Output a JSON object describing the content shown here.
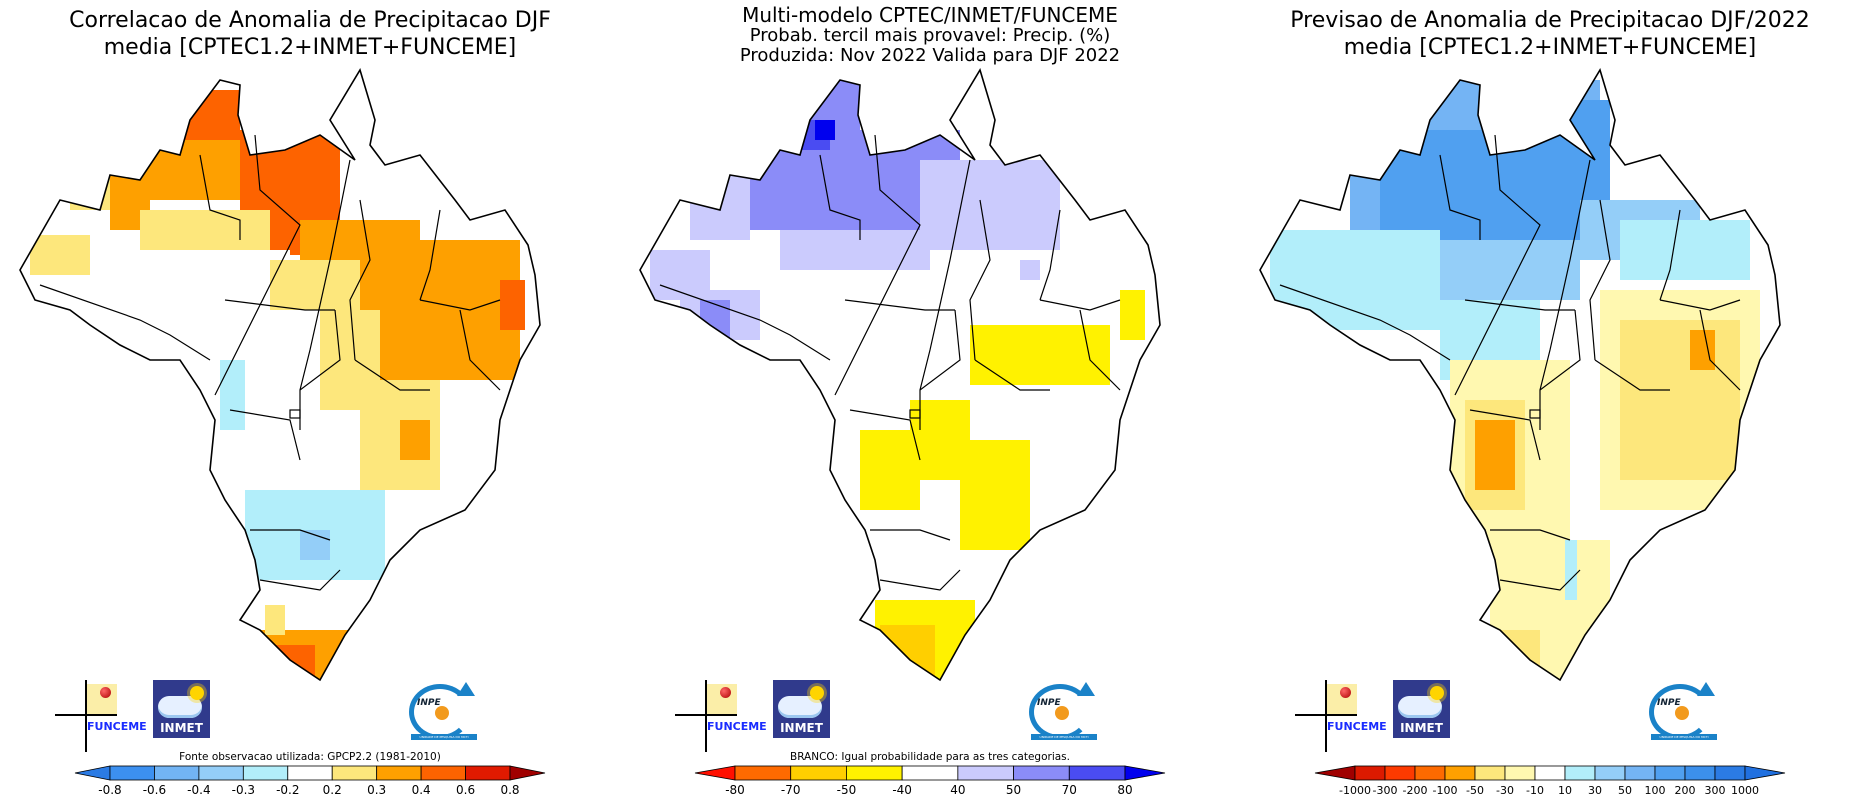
{
  "panels": [
    {
      "id": "correlation",
      "title_lines": [
        "Correlacao de Anomalia de Precipitacao DJF",
        "media [CPTEC1.2+INMET+FUNCEME]"
      ],
      "note": "Fonte observacao utilizada: GPCP2.2 (1981-2010)",
      "colorbar": {
        "labels": [
          "-0.8",
          "-0.6",
          "-0.4",
          "-0.3",
          "-0.2",
          "0.2",
          "0.3",
          "0.4",
          "0.6",
          "0.8"
        ],
        "colors": [
          "#2b7be4",
          "#3c90f0",
          "#72b4f4",
          "#94cef8",
          "#b2eefa",
          "#ffffff",
          "#fde77c",
          "#fea000",
          "#fd6300",
          "#e01a00",
          "#a00000"
        ]
      },
      "regions": [
        {
          "name": "north-roraima",
          "color": "#fd6300"
        },
        {
          "name": "central-amazon",
          "color": "#fd6300"
        },
        {
          "name": "para-belt",
          "color": "#fea000"
        },
        {
          "name": "northeast",
          "color": "#fea000"
        },
        {
          "name": "western-amazon",
          "color": "#fde77c"
        },
        {
          "name": "south-rs",
          "color": "#fd6300"
        },
        {
          "name": "southeast-mg",
          "color": "#fde77c"
        },
        {
          "name": "parana-ms",
          "color": "#b2eefa"
        }
      ]
    },
    {
      "id": "tercile",
      "title_lines": [
        "Multi-modelo CPTEC/INMET/FUNCEME",
        "Probab. tercil mais provavel: Precip. (%)",
        "Produzida: Nov 2022  Valida para DJF 2022"
      ],
      "note": "BRANCO: Igual probabilidade para as tres categorias.",
      "colorbar": {
        "labels": [
          "-80",
          "-70",
          "-50",
          "-40",
          "40",
          "50",
          "70",
          "80"
        ],
        "colors": [
          "#ff1000",
          "#fe6a00",
          "#ffcf00",
          "#fff200",
          "#ffffff",
          "#cbcbfd",
          "#8b8cf8",
          "#4a4cf2",
          "#0000ee"
        ]
      },
      "regions": [
        {
          "name": "north-amazon",
          "color": "#8b8cf8"
        },
        {
          "name": "roraima-core",
          "color": "#0000ee"
        },
        {
          "name": "amazon-fringe",
          "color": "#cbcbfd"
        },
        {
          "name": "bahia",
          "color": "#fff200"
        },
        {
          "name": "goias-mg",
          "color": "#fff200"
        },
        {
          "name": "south-rs",
          "color": "#ffcf00"
        }
      ]
    },
    {
      "id": "forecast",
      "title_lines": [
        "Previsao de Anomalia de Precipitacao DJF/2022",
        "media [CPTEC1.2+INMET+FUNCEME]"
      ],
      "note": "",
      "colorbar": {
        "labels": [
          "-1000",
          "-300",
          "-200",
          "-100",
          "-50",
          "-30",
          "-10",
          "10",
          "30",
          "50",
          "100",
          "200",
          "300",
          "1000"
        ],
        "colors": [
          "#a00000",
          "#dc1a00",
          "#fd3a00",
          "#fd6a00",
          "#fea000",
          "#fde77c",
          "#fff8b0",
          "#ffffff",
          "#b2eefa",
          "#94cef8",
          "#74b4f4",
          "#50a0f0",
          "#3c90ec",
          "#2b7be4",
          "#2070e0"
        ]
      },
      "regions": [
        {
          "name": "amazon",
          "color": "#50a0f0"
        },
        {
          "name": "amazon-fringe",
          "color": "#74b4f4"
        },
        {
          "name": "west-center",
          "color": "#b2eefa"
        },
        {
          "name": "northeast",
          "color": "#fff8b0"
        },
        {
          "name": "mg-bahia",
          "color": "#fde77c"
        },
        {
          "name": "ms",
          "color": "#fea000"
        },
        {
          "name": "south",
          "color": "#fff8b0"
        }
      ]
    }
  ],
  "logos": {
    "funceme": "FUNCEME",
    "inmet": "INMET",
    "inpe": "INPE",
    "inpe_band": "UNIDADE DE PESQUISA DO MCTI"
  }
}
